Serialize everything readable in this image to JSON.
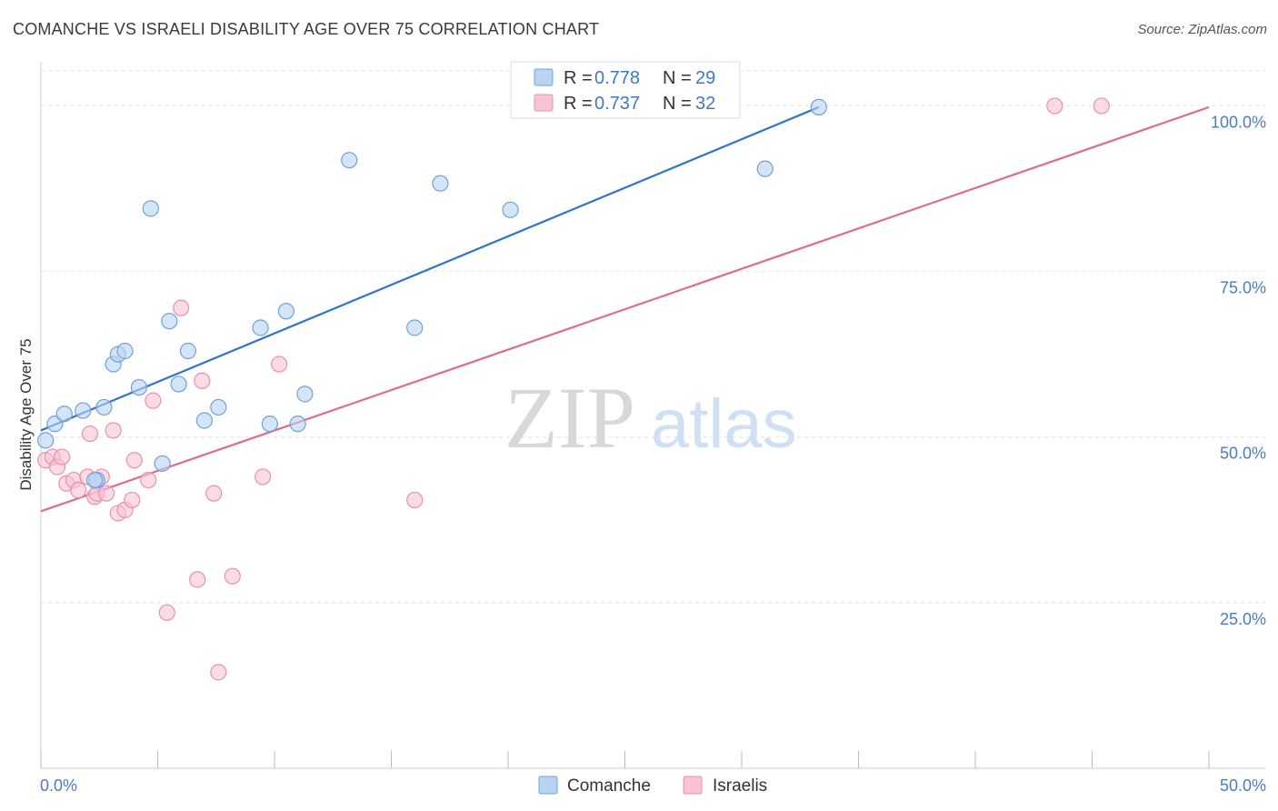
{
  "title": "COMANCHE VS ISRAELI DISABILITY AGE OVER 75 CORRELATION CHART",
  "source": "Source: ZipAtlas.com",
  "watermark": {
    "zip": "ZIP",
    "atlas": "atlas"
  },
  "colors": {
    "comanche_fill": "#b9d3f3",
    "comanche_stroke": "#6fa0dc",
    "comanche_line": "#2f74c9",
    "israelis_fill": "#f8c3d3",
    "israelis_stroke": "#e890ad",
    "israelis_line": "#e06a94",
    "tick_label": "#4a7cc4",
    "grid": "#e4e4e4"
  },
  "legend": {
    "r_label": "R =",
    "n_label": "N =",
    "entries": [
      {
        "r": "0.778",
        "n": "29"
      },
      {
        "r": "0.737",
        "n": "32"
      }
    ]
  },
  "chart_data": {
    "type": "scatter",
    "title": "COMANCHE VS ISRAELI DISABILITY AGE OVER 75 CORRELATION CHART",
    "xlabel": "",
    "ylabel": "Disability Age Over 75",
    "xlim": [
      0,
      50
    ],
    "ylim": [
      0,
      105
    ],
    "x_tick_labels": [
      "0.0%",
      "50.0%"
    ],
    "y_ticks": [
      25,
      50,
      75,
      100
    ],
    "y_tick_labels": [
      "25.0%",
      "50.0%",
      "75.0%",
      "100.0%"
    ],
    "grid": true,
    "legend_position": "top-center",
    "series": [
      {
        "name": "Comanche",
        "points": [
          [
            0.2,
            49.5
          ],
          [
            0.6,
            52.0
          ],
          [
            1.0,
            53.5
          ],
          [
            1.8,
            54.0
          ],
          [
            2.4,
            43.5
          ],
          [
            2.7,
            54.5
          ],
          [
            3.1,
            61.0
          ],
          [
            3.3,
            62.5
          ],
          [
            3.6,
            63.0
          ],
          [
            4.2,
            57.5
          ],
          [
            4.7,
            84.5
          ],
          [
            5.2,
            46.0
          ],
          [
            5.5,
            67.5
          ],
          [
            5.9,
            58.0
          ],
          [
            6.3,
            63.0
          ],
          [
            7.0,
            52.5
          ],
          [
            7.6,
            54.5
          ],
          [
            9.4,
            66.5
          ],
          [
            9.8,
            52.0
          ],
          [
            10.5,
            69.0
          ],
          [
            11.0,
            52.0
          ],
          [
            11.3,
            56.5
          ],
          [
            13.2,
            91.8
          ],
          [
            16.0,
            66.5
          ],
          [
            17.1,
            88.3
          ],
          [
            20.1,
            84.3
          ],
          [
            31.0,
            90.5
          ],
          [
            33.3,
            99.8
          ],
          [
            2.3,
            43.5
          ]
        ],
        "trend": {
          "x": [
            0,
            33.3
          ],
          "y": [
            51.0,
            99.8
          ]
        }
      },
      {
        "name": "Israelis",
        "points": [
          [
            0.2,
            46.5
          ],
          [
            0.5,
            47.0
          ],
          [
            0.7,
            45.5
          ],
          [
            0.9,
            47.0
          ],
          [
            1.1,
            43.0
          ],
          [
            1.4,
            43.5
          ],
          [
            1.6,
            42.0
          ],
          [
            2.0,
            44.0
          ],
          [
            2.1,
            50.5
          ],
          [
            2.3,
            41.0
          ],
          [
            2.4,
            41.5
          ],
          [
            2.6,
            44.0
          ],
          [
            2.8,
            41.5
          ],
          [
            3.1,
            51.0
          ],
          [
            3.3,
            38.5
          ],
          [
            3.6,
            39.0
          ],
          [
            3.9,
            40.5
          ],
          [
            4.0,
            46.5
          ],
          [
            4.6,
            43.5
          ],
          [
            4.8,
            55.5
          ],
          [
            5.4,
            23.5
          ],
          [
            6.0,
            69.5
          ],
          [
            6.7,
            28.5
          ],
          [
            6.9,
            58.5
          ],
          [
            7.4,
            41.5
          ],
          [
            7.6,
            14.5
          ],
          [
            8.2,
            29.0
          ],
          [
            9.5,
            44.0
          ],
          [
            10.2,
            61.0
          ],
          [
            16.0,
            40.5
          ],
          [
            43.4,
            100.0
          ],
          [
            45.4,
            100.0
          ]
        ],
        "trend": {
          "x": [
            0,
            50
          ],
          "y": [
            38.8,
            99.8
          ]
        }
      }
    ]
  }
}
